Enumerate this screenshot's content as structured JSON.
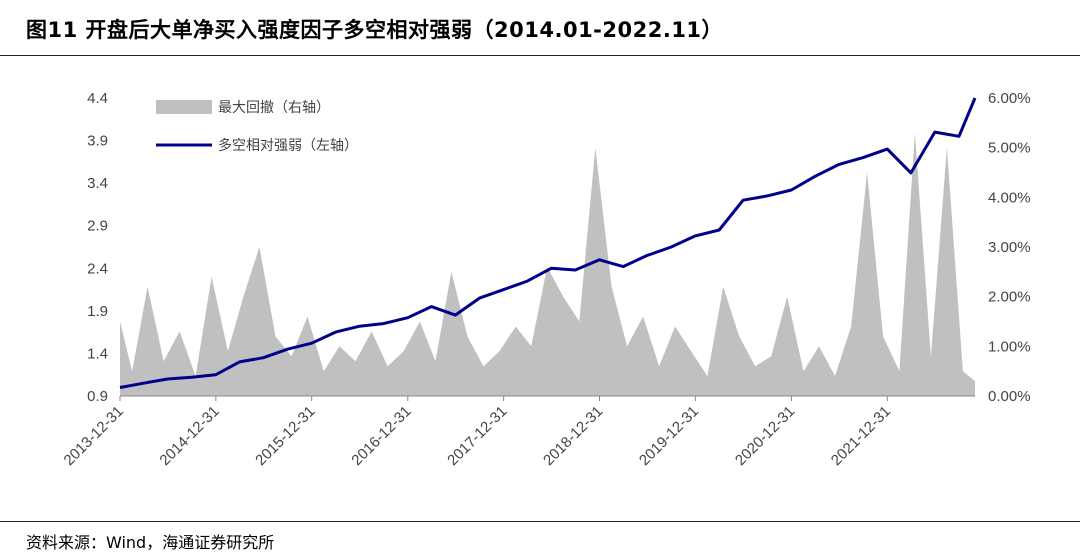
{
  "figure": {
    "title": "图11 开盘后大单净买入强度因子多空相对强弱（2014.01-2022.11）",
    "source": "资料来源：Wind，海通证券研究所"
  },
  "colors": {
    "line": "#00008B",
    "area": "#C0C0C0",
    "axis": "#888888"
  },
  "chart_data": {
    "type": "line",
    "title": "图11 开盘后大单净买入强度因子多空相对强弱（2014.01-2022.11）",
    "x_ticks": [
      "2013-12-31",
      "2014-12-31",
      "2015-12-31",
      "2016-12-31",
      "2017-12-31",
      "2018-12-31",
      "2019-12-31",
      "2020-12-31",
      "2021-12-31"
    ],
    "x_range": [
      "2013-12-31",
      "2022-11-30"
    ],
    "y_left": {
      "ticks": [
        "0.9",
        "1.4",
        "1.9",
        "2.4",
        "2.9",
        "3.4",
        "3.9",
        "4.4"
      ],
      "range": [
        0.9,
        4.4
      ]
    },
    "y_right": {
      "ticks": [
        "0.00%",
        "1.00%",
        "2.00%",
        "3.00%",
        "4.00%",
        "5.00%",
        "6.00%"
      ],
      "range": [
        0,
        0.06
      ]
    },
    "legend": {
      "position": "top-left",
      "entries": [
        "最大回撤（右轴）",
        "多空相对强弱（左轴）"
      ]
    },
    "series": [
      {
        "name": "多空相对强弱（左轴）",
        "axis": "left",
        "kind": "line",
        "x": [
          "2013-12-31",
          "2014-03-31",
          "2014-06-30",
          "2014-09-30",
          "2014-12-31",
          "2015-03-31",
          "2015-06-30",
          "2015-09-30",
          "2015-12-31",
          "2016-03-31",
          "2016-06-30",
          "2016-09-30",
          "2016-12-31",
          "2017-03-31",
          "2017-06-30",
          "2017-09-30",
          "2017-12-31",
          "2018-03-31",
          "2018-06-30",
          "2018-09-30",
          "2018-12-31",
          "2019-03-31",
          "2019-06-30",
          "2019-09-30",
          "2019-12-31",
          "2020-03-31",
          "2020-06-30",
          "2020-09-30",
          "2020-12-31",
          "2021-03-31",
          "2021-06-30",
          "2021-09-30",
          "2021-12-31",
          "2022-03-31",
          "2022-06-30",
          "2022-09-30",
          "2022-11-30"
        ],
        "y": [
          1.0,
          1.05,
          1.1,
          1.12,
          1.15,
          1.3,
          1.35,
          1.45,
          1.52,
          1.65,
          1.72,
          1.75,
          1.82,
          1.95,
          1.85,
          2.05,
          2.15,
          2.25,
          2.4,
          2.38,
          2.5,
          2.42,
          2.55,
          2.65,
          2.78,
          2.85,
          3.2,
          3.25,
          3.32,
          3.48,
          3.62,
          3.7,
          3.8,
          3.52,
          4.0,
          3.95,
          4.4
        ]
      },
      {
        "name": "最大回撤（右轴）",
        "axis": "right",
        "kind": "area",
        "x": [
          "2013-12-31",
          "2014-02-15",
          "2014-04-15",
          "2014-06-15",
          "2014-08-15",
          "2014-10-15",
          "2014-12-15",
          "2015-02-15",
          "2015-04-15",
          "2015-06-15",
          "2015-08-15",
          "2015-10-15",
          "2015-12-15",
          "2016-02-15",
          "2016-04-15",
          "2016-06-15",
          "2016-08-15",
          "2016-10-15",
          "2016-12-15",
          "2017-02-15",
          "2017-04-15",
          "2017-06-15",
          "2017-08-15",
          "2017-10-15",
          "2017-12-15",
          "2018-02-15",
          "2018-04-15",
          "2018-06-15",
          "2018-08-15",
          "2018-10-15",
          "2018-12-15",
          "2019-02-15",
          "2019-04-15",
          "2019-06-15",
          "2019-08-15",
          "2019-10-15",
          "2019-12-15",
          "2020-02-15",
          "2020-04-15",
          "2020-06-15",
          "2020-08-15",
          "2020-10-15",
          "2020-12-15",
          "2021-02-15",
          "2021-04-15",
          "2021-06-15",
          "2021-08-15",
          "2021-10-15",
          "2021-12-15",
          "2022-02-15",
          "2022-04-15",
          "2022-06-15",
          "2022-08-15",
          "2022-10-15",
          "2022-11-30"
        ],
        "y": [
          0.015,
          0.005,
          0.022,
          0.007,
          0.013,
          0.004,
          0.024,
          0.009,
          0.02,
          0.03,
          0.012,
          0.008,
          0.016,
          0.005,
          0.01,
          0.007,
          0.013,
          0.006,
          0.009,
          0.015,
          0.007,
          0.025,
          0.012,
          0.006,
          0.009,
          0.014,
          0.01,
          0.026,
          0.02,
          0.015,
          0.05,
          0.022,
          0.01,
          0.016,
          0.006,
          0.014,
          0.009,
          0.004,
          0.022,
          0.012,
          0.006,
          0.008,
          0.02,
          0.005,
          0.01,
          0.004,
          0.014,
          0.045,
          0.012,
          0.005,
          0.053,
          0.008,
          0.05,
          0.005,
          0.003
        ]
      }
    ]
  }
}
